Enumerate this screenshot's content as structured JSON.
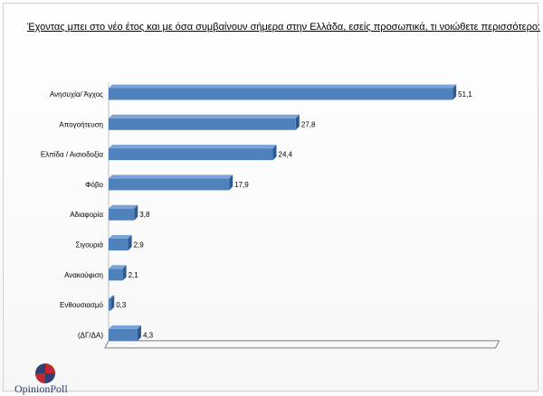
{
  "chart_data": {
    "type": "bar",
    "orientation": "horizontal",
    "title": "Έχοντας μπει στο νέο έτος και με  όσα συμβαίνουν σήμερα στην Ελλάδα, εσείς προσωπικά, τι νοιώθετε περισσότερο:",
    "categories": [
      "Ανησυχία/ Άγχος",
      "Απογοήτευση",
      "Ελπίδα / Αισιοδοξία",
      "Φόβο",
      "Αδιαφορία",
      "Σιγουριά",
      "Ανακούφιση",
      "Ενθουσιασμό",
      "(ΔΓ/ΔΑ)"
    ],
    "values": [
      51.1,
      27.8,
      24.4,
      17.9,
      3.8,
      2.9,
      2.1,
      0.3,
      4.3
    ],
    "value_labels": [
      "51,1",
      "27,8",
      "24,4",
      "17,9",
      "3,8",
      "2,9",
      "2,1",
      "0,3",
      "4,3"
    ],
    "xlim": [
      0,
      60
    ],
    "grid": false,
    "legend": "none",
    "style": "3d",
    "colors": {
      "bar": "#4f81bd",
      "bar_top": "#7aa3d8",
      "bar_side": "#2f5a8f"
    }
  },
  "logo": {
    "text": "OpinionPoll"
  }
}
